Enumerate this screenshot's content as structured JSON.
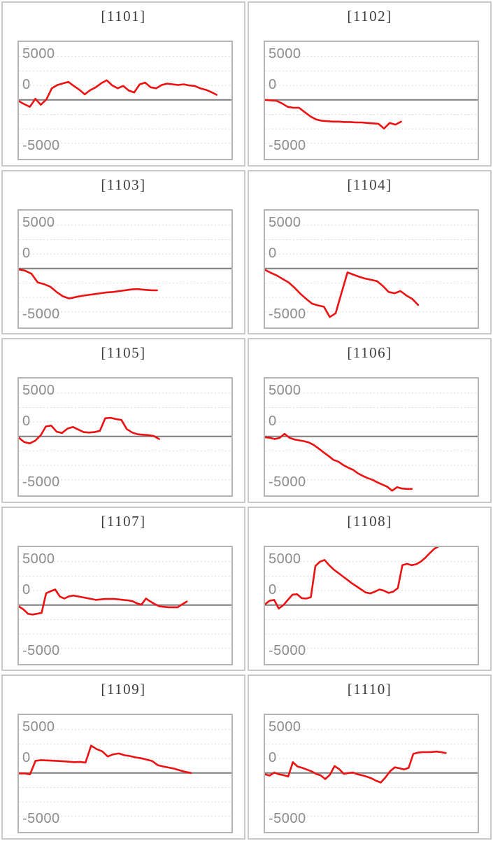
{
  "axis": {
    "ticks": [
      "5000",
      "0",
      "-5000"
    ]
  },
  "colors": {
    "line": "#ee1111",
    "zero_line": "#7d7d7d",
    "grid_line": "#dadada",
    "plot_border": "#b5b5b5",
    "panel_border": "#c9c9c9",
    "title_text": "#3c3c3c",
    "tick_text": "#8c8c8c"
  },
  "chart_data": {
    "type": "line",
    "title": "",
    "xlabel": "",
    "ylabel": "",
    "ylabel_ticks": [
      5000,
      0,
      -5000
    ],
    "ylim": [
      -6770,
      6670
    ],
    "grid": "dashed horizontal",
    "grid_values": [
      5000,
      3333,
      1667,
      0,
      -1667,
      -3333,
      -5000
    ],
    "legend": "none",
    "series_color": "#ee1111",
    "charts": [
      {
        "title": "[1101]",
        "end_frac": 0.93,
        "values": [
          -150,
          -500,
          -800,
          130,
          -560,
          50,
          1340,
          1720,
          1900,
          2070,
          1610,
          1180,
          640,
          1130,
          1450,
          1930,
          2260,
          1670,
          1340,
          1610,
          1080,
          860,
          1800,
          1990,
          1450,
          1340,
          1720,
          1880,
          1800,
          1720,
          1800,
          1670,
          1610,
          1340,
          1180,
          910,
          590
        ]
      },
      {
        "title": "[1102]",
        "end_frac": 0.64,
        "values": [
          0,
          -50,
          -100,
          -400,
          -800,
          -900,
          -900,
          -1400,
          -1900,
          -2250,
          -2400,
          -2450,
          -2500,
          -2500,
          -2550,
          -2550,
          -2600,
          -2600,
          -2650,
          -2700,
          -2750,
          -3300,
          -2650,
          -2850,
          -2500
        ]
      },
      {
        "title": "[1103]",
        "end_frac": 0.65,
        "values": [
          -100,
          -250,
          -600,
          -1600,
          -1800,
          -2100,
          -2700,
          -3200,
          -3450,
          -3300,
          -3150,
          -3050,
          -2950,
          -2850,
          -2750,
          -2700,
          -2600,
          -2500,
          -2400,
          -2370,
          -2450,
          -2500,
          -2520
        ]
      },
      {
        "title": "[1104]",
        "end_frac": 0.72,
        "values": [
          -150,
          -500,
          -800,
          -1200,
          -1600,
          -2200,
          -2900,
          -3500,
          -4050,
          -4250,
          -4400,
          -5600,
          -5150,
          -2800,
          -450,
          -700,
          -950,
          -1150,
          -1300,
          -1450,
          -2000,
          -2700,
          -2850,
          -2600,
          -3100,
          -3500,
          -4200
        ]
      },
      {
        "title": "[1105]",
        "end_frac": 0.66,
        "values": [
          -150,
          -650,
          -800,
          -500,
          100,
          1150,
          1250,
          550,
          400,
          900,
          1100,
          800,
          500,
          450,
          500,
          650,
          2100,
          2150,
          2000,
          1900,
          850,
          450,
          250,
          200,
          150,
          50,
          -300
        ]
      },
      {
        "title": "[1106]",
        "end_frac": 0.69,
        "values": [
          -100,
          -150,
          -300,
          -150,
          300,
          -150,
          -350,
          -450,
          -550,
          -700,
          -1000,
          -1400,
          -1850,
          -2250,
          -2700,
          -2900,
          -3300,
          -3600,
          -3850,
          -4250,
          -4550,
          -4800,
          -5000,
          -5300,
          -5550,
          -5800,
          -6250,
          -5850,
          -6000,
          -6050,
          -6050
        ]
      },
      {
        "title": "[1107]",
        "end_frac": 0.79,
        "values": [
          -150,
          -500,
          -1000,
          -1100,
          -1000,
          -900,
          1350,
          1600,
          1800,
          1000,
          750,
          1000,
          1100,
          1000,
          900,
          800,
          700,
          600,
          650,
          700,
          700,
          700,
          650,
          600,
          550,
          450,
          200,
          50,
          750,
          400,
          100,
          -150,
          -200,
          -250,
          -250,
          -250,
          100,
          400
        ]
      },
      {
        "title": "[1108]",
        "end_frac": 0.84,
        "values": [
          100,
          500,
          600,
          -400,
          0,
          600,
          1200,
          1250,
          800,
          750,
          900,
          4500,
          5000,
          5200,
          4600,
          4100,
          3700,
          3300,
          2900,
          2500,
          2150,
          1800,
          1450,
          1350,
          1550,
          1800,
          1650,
          1400,
          1550,
          1950,
          4600,
          4750,
          4600,
          4700,
          5000,
          5450,
          6000,
          6500,
          6800,
          6900
        ]
      },
      {
        "title": "[1109]",
        "end_frac": 0.81,
        "values": [
          -50,
          -50,
          -150,
          1400,
          1480,
          1450,
          1420,
          1390,
          1350,
          1300,
          1250,
          1280,
          1200,
          3150,
          2750,
          2500,
          1900,
          2150,
          2250,
          2050,
          1950,
          1800,
          1700,
          1550,
          1380,
          900,
          750,
          620,
          500,
          300,
          130,
          0
        ]
      },
      {
        "title": "[1110]",
        "end_frac": 0.85,
        "values": [
          -150,
          -300,
          50,
          -150,
          -250,
          -400,
          1250,
          750,
          600,
          400,
          200,
          -100,
          -270,
          -700,
          -200,
          800,
          450,
          -100,
          0,
          50,
          -150,
          -270,
          -430,
          -620,
          -900,
          -1100,
          -500,
          200,
          650,
          550,
          400,
          600,
          2200,
          2350,
          2400,
          2400,
          2420,
          2470,
          2400,
          2300
        ]
      }
    ]
  }
}
